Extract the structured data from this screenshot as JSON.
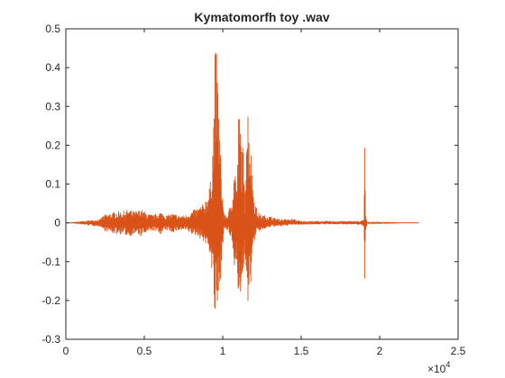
{
  "chart_data": {
    "type": "line",
    "title": "Kymatomorfh toy .wav",
    "xlabel": "",
    "ylabel": "",
    "xlim": [
      0,
      25000
    ],
    "ylim": [
      -0.3,
      0.5
    ],
    "x_ticks": [
      0,
      0.5,
      1,
      1.5,
      2,
      2.5
    ],
    "x_tick_labels": [
      "0",
      "0.5",
      "1",
      "1.5",
      "2",
      "2.5"
    ],
    "x_multiplier_base": "×10",
    "x_multiplier_exponent": "4",
    "y_ticks": [
      -0.3,
      -0.2,
      -0.1,
      0,
      0.1,
      0.2,
      0.3,
      0.4,
      0.5
    ],
    "y_tick_labels": [
      "-0.3",
      "-0.2",
      "-0.1",
      "0",
      "0.1",
      "0.2",
      "0.3",
      "0.4",
      "0.5"
    ],
    "grid": false,
    "series": [
      {
        "color": "#D95319",
        "x": [
          0,
          2200,
          2400,
          2800,
          3200,
          3600,
          4000,
          4400,
          4800,
          5200,
          5600,
          6000,
          6400,
          6800,
          7200,
          7600,
          8000,
          8400,
          8800,
          9200,
          9400,
          9500,
          9600,
          9700,
          9800,
          9900,
          10000,
          10100,
          10300,
          10500,
          10700,
          10800,
          10900,
          11000,
          11100,
          11200,
          11300,
          11400,
          11500,
          11600,
          11700,
          11800,
          11900,
          12000,
          12200,
          12500,
          12800,
          13200,
          13600,
          14000,
          14500,
          15000,
          16000,
          17000,
          18000,
          18800,
          19000,
          19050,
          19100,
          19200,
          20000,
          21000,
          22500
        ],
        "upper": [
          0,
          0.01,
          0.02,
          0.025,
          0.03,
          0.03,
          0.035,
          0.03,
          0.035,
          0.025,
          0.02,
          0.03,
          0.02,
          0.025,
          0.02,
          0.02,
          0.03,
          0.04,
          0.05,
          0.1,
          0.25,
          0.46,
          0.44,
          0.38,
          0.26,
          0.15,
          0.07,
          0.02,
          0.02,
          0.05,
          0.12,
          0.17,
          0.08,
          0.28,
          0.29,
          0.22,
          0.2,
          0.06,
          0.3,
          0.32,
          0.27,
          0.2,
          0.14,
          0.07,
          0.03,
          0.02,
          0.02,
          0.015,
          0.01,
          0.01,
          0.01,
          0.005,
          0.005,
          0.005,
          0.005,
          0.005,
          0.01,
          0.25,
          0.02,
          0.003,
          0.003,
          0.002,
          0
        ],
        "lower": [
          0,
          -0.01,
          -0.02,
          -0.025,
          -0.03,
          -0.03,
          -0.035,
          -0.03,
          -0.035,
          -0.025,
          -0.02,
          -0.03,
          -0.02,
          -0.025,
          -0.02,
          -0.02,
          -0.03,
          -0.035,
          -0.05,
          -0.08,
          -0.18,
          -0.26,
          -0.26,
          -0.24,
          -0.2,
          -0.12,
          -0.06,
          -0.02,
          -0.02,
          -0.04,
          -0.1,
          -0.15,
          -0.07,
          -0.2,
          -0.22,
          -0.19,
          -0.16,
          -0.05,
          -0.22,
          -0.23,
          -0.2,
          -0.15,
          -0.1,
          -0.05,
          -0.025,
          -0.02,
          -0.015,
          -0.01,
          -0.01,
          -0.008,
          -0.005,
          -0.005,
          -0.004,
          -0.004,
          -0.004,
          -0.005,
          -0.01,
          -0.19,
          -0.02,
          -0.003,
          -0.003,
          -0.002,
          0
        ]
      }
    ]
  }
}
